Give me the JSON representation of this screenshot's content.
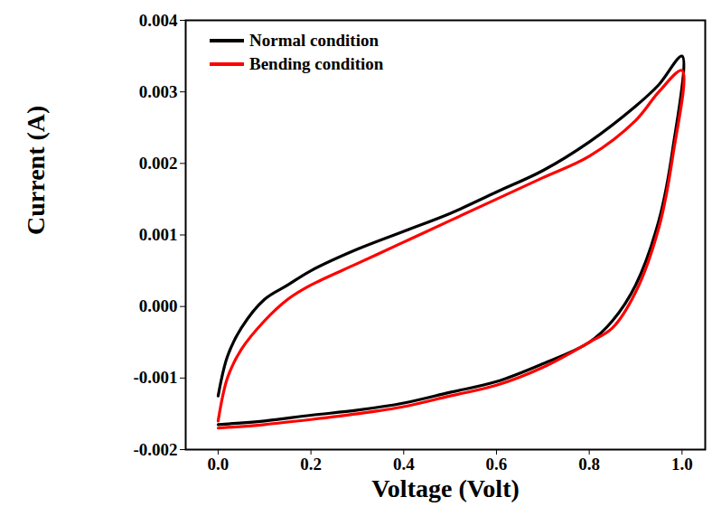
{
  "chart_data": {
    "type": "line",
    "x_label": "Voltage (Volt)",
    "y_label": "Current (A)",
    "xlim": [
      -0.07,
      1.05
    ],
    "ylim": [
      -0.002,
      0.004
    ],
    "xticks": [
      {
        "value": 0,
        "label": "0.0"
      },
      0.2,
      0.4,
      0.6,
      0.8,
      {
        "value": 1,
        "label": "1.0"
      }
    ],
    "yticks": [
      -0.002,
      -0.001,
      {
        "value": 0,
        "label": "0.000"
      },
      0.001,
      0.002,
      0.003,
      0.004
    ],
    "legend": "upper left",
    "series": [
      {
        "name": "Normal condition",
        "color": "#000000",
        "x": [
          0,
          0.02,
          0.05,
          0.1,
          0.15,
          0.2,
          0.3,
          0.4,
          0.5,
          0.6,
          0.7,
          0.8,
          0.9,
          0.95,
          1.0,
          0.98,
          0.95,
          0.9,
          0.85,
          0.8,
          0.7,
          0.6,
          0.5,
          0.4,
          0.3,
          0.2,
          0.1,
          0
        ],
        "values": [
          -0.00125,
          -0.0007,
          -0.0003,
          0.0001,
          0.0003,
          0.0005,
          0.0008,
          0.00105,
          0.0013,
          0.0016,
          0.0019,
          0.0023,
          0.0028,
          0.0031,
          0.0035,
          0.0022,
          0.0012,
          0.0003,
          -0.0002,
          -0.0005,
          -0.0008,
          -0.00105,
          -0.0012,
          -0.00135,
          -0.00145,
          -0.00152,
          -0.0016,
          -0.00165
        ]
      },
      {
        "name": "Bending condition",
        "color": "#ff0000",
        "x": [
          0,
          0.02,
          0.05,
          0.1,
          0.15,
          0.2,
          0.3,
          0.4,
          0.5,
          0.6,
          0.7,
          0.8,
          0.9,
          0.95,
          1.0,
          0.98,
          0.95,
          0.9,
          0.85,
          0.8,
          0.7,
          0.6,
          0.5,
          0.4,
          0.3,
          0.2,
          0.1,
          0
        ],
        "values": [
          -0.0016,
          -0.001,
          -0.0006,
          -0.0002,
          0.0001,
          0.0003,
          0.0006,
          0.0009,
          0.0012,
          0.0015,
          0.0018,
          0.0021,
          0.0026,
          0.003,
          0.0033,
          0.0021,
          0.0011,
          0.0002,
          -0.0003,
          -0.0005,
          -0.00085,
          -0.0011,
          -0.00125,
          -0.0014,
          -0.0015,
          -0.00158,
          -0.00165,
          -0.0017
        ]
      }
    ]
  }
}
